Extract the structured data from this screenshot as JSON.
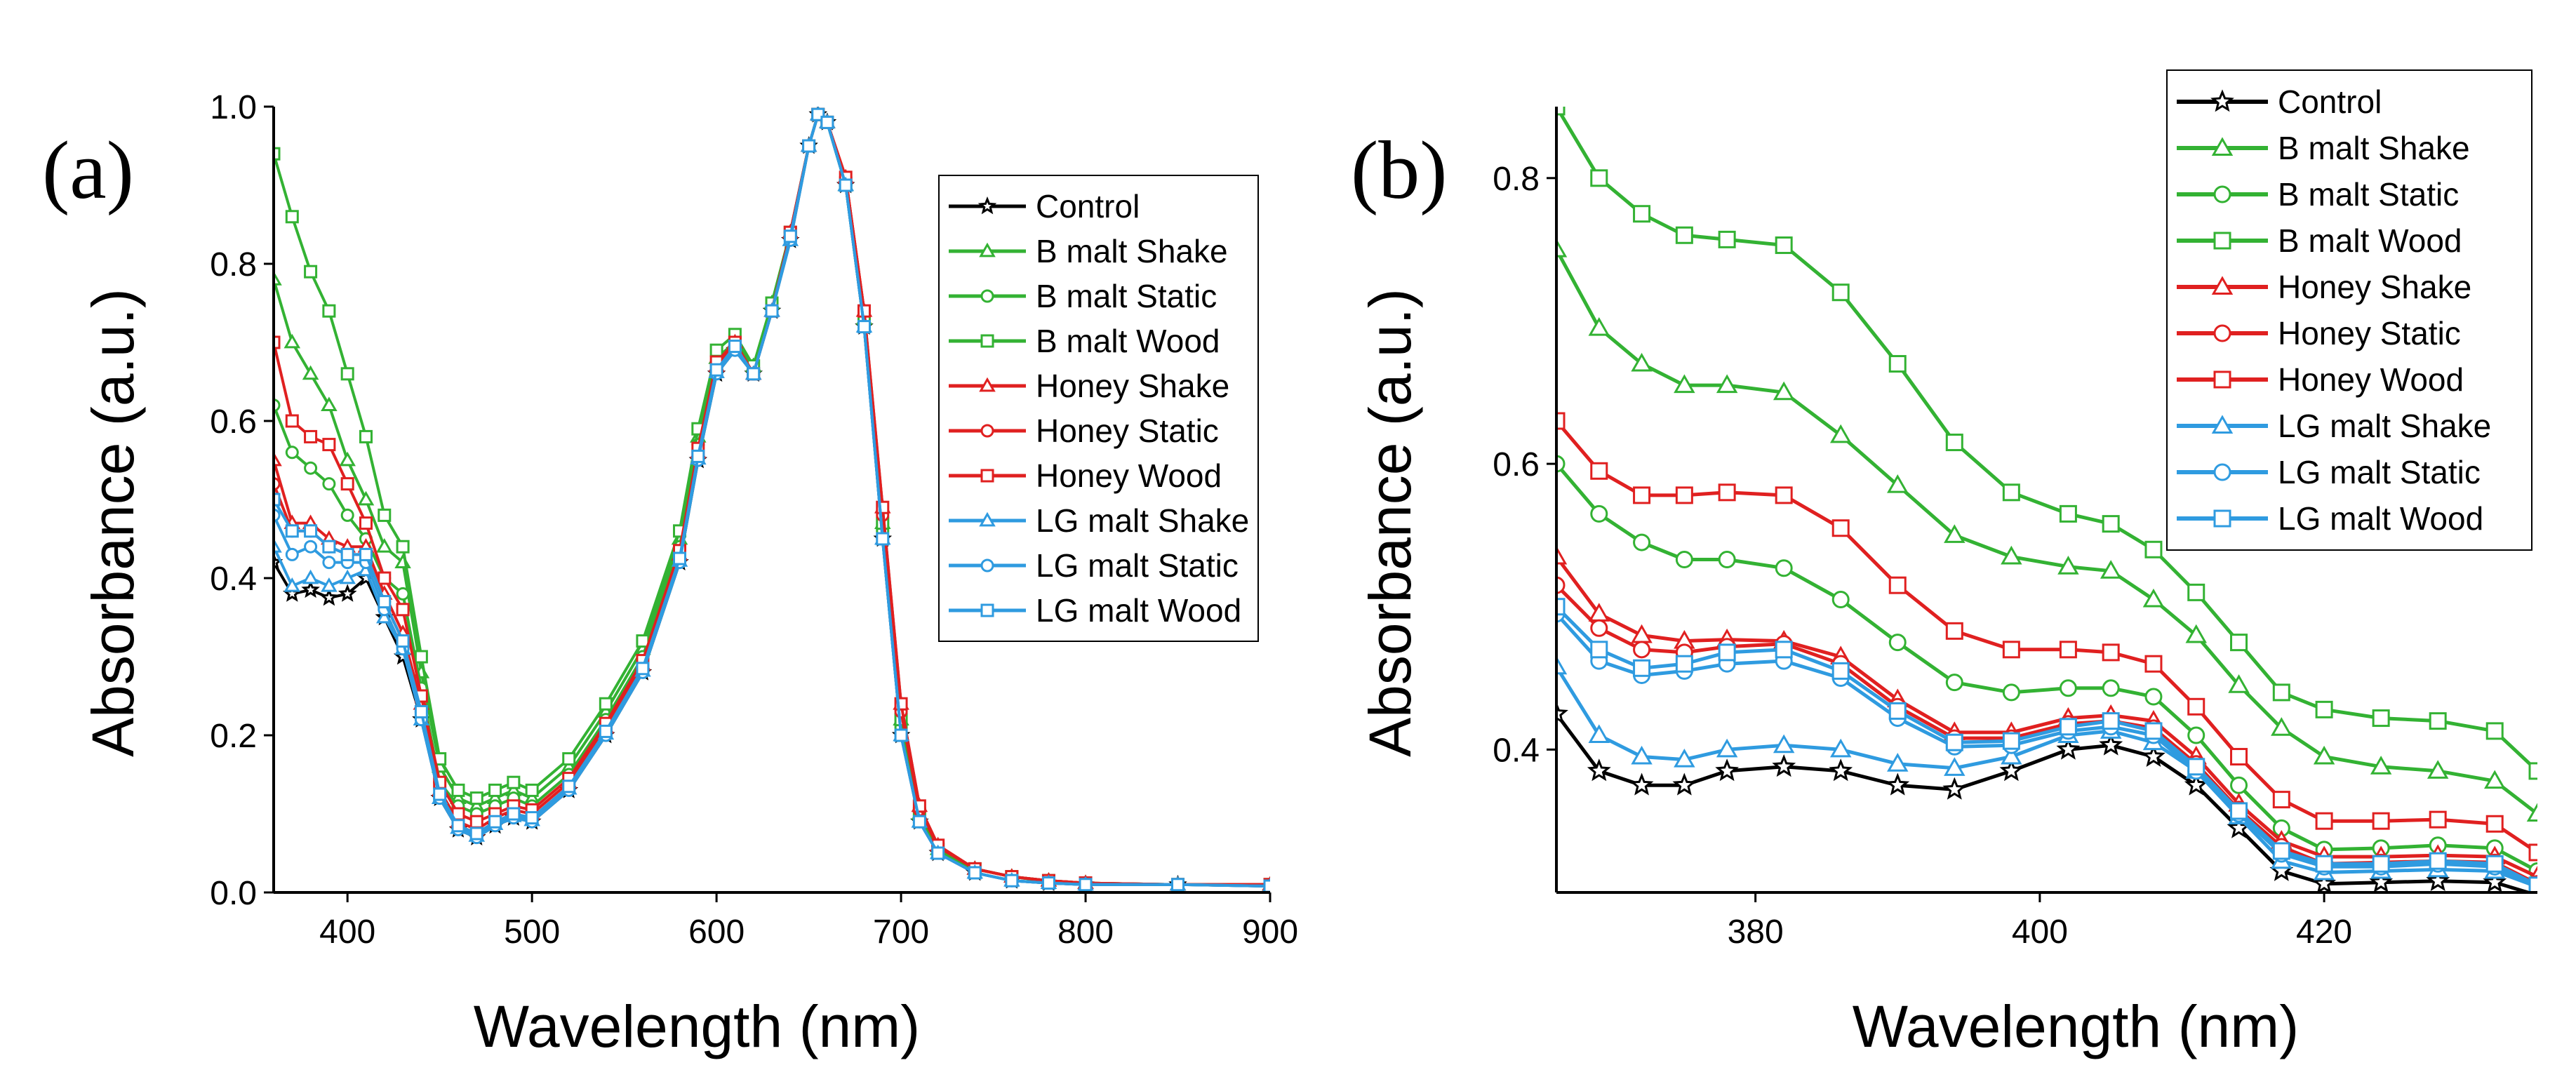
{
  "colors": {
    "control": "#000000",
    "b_malt": "#33b233",
    "honey": "#e02020",
    "lg_malt": "#2f9be0"
  },
  "chart_data": [
    {
      "panel": "(a)",
      "type": "line",
      "xlabel": "Wavelength (nm)",
      "ylabel": "Absorbance (a.u.)",
      "xlim": [
        360,
        900
      ],
      "ylim": [
        0.0,
        1.0
      ],
      "xticks": [
        "400",
        "500",
        "600",
        "700",
        "800",
        "900"
      ],
      "yticks": [
        "0.0",
        "0.2",
        "0.4",
        "0.6",
        "0.8",
        "1.0"
      ],
      "legend_position": "top-right",
      "x": [
        360,
        370,
        380,
        390,
        400,
        410,
        420,
        430,
        440,
        450,
        460,
        470,
        480,
        490,
        500,
        520,
        540,
        560,
        580,
        590,
        600,
        610,
        620,
        630,
        640,
        650,
        655,
        660,
        670,
        680,
        690,
        700,
        710,
        720,
        740,
        760,
        780,
        800,
        850,
        900
      ],
      "series": [
        {
          "name": "Control",
          "color": "control",
          "marker": "star",
          "values": [
            0.42,
            0.38,
            0.385,
            0.375,
            0.38,
            0.4,
            0.35,
            0.3,
            0.22,
            0.12,
            0.08,
            0.07,
            0.085,
            0.095,
            0.09,
            0.13,
            0.2,
            0.28,
            0.42,
            0.55,
            0.66,
            0.69,
            0.66,
            0.74,
            0.83,
            0.95,
            0.99,
            0.98,
            0.9,
            0.72,
            0.45,
            0.2,
            0.09,
            0.05,
            0.025,
            0.015,
            0.012,
            0.01,
            0.01,
            0.008
          ]
        },
        {
          "name": "B malt Shake",
          "color": "b_malt",
          "marker": "triangle",
          "values": [
            0.78,
            0.7,
            0.66,
            0.62,
            0.55,
            0.5,
            0.44,
            0.42,
            0.28,
            0.16,
            0.12,
            0.11,
            0.12,
            0.13,
            0.12,
            0.16,
            0.23,
            0.31,
            0.45,
            0.58,
            0.68,
            0.7,
            0.67,
            0.75,
            0.84,
            0.95,
            0.99,
            0.98,
            0.9,
            0.73,
            0.47,
            0.22,
            0.1,
            0.055,
            0.03,
            0.02,
            0.015,
            0.012,
            0.01,
            0.01
          ]
        },
        {
          "name": "B malt Static",
          "color": "b_malt",
          "marker": "circle",
          "values": [
            0.62,
            0.56,
            0.54,
            0.52,
            0.48,
            0.45,
            0.4,
            0.38,
            0.26,
            0.14,
            0.11,
            0.1,
            0.11,
            0.12,
            0.11,
            0.15,
            0.22,
            0.3,
            0.44,
            0.57,
            0.67,
            0.7,
            0.66,
            0.74,
            0.84,
            0.95,
            0.99,
            0.98,
            0.9,
            0.72,
            0.46,
            0.21,
            0.095,
            0.05,
            0.03,
            0.02,
            0.014,
            0.011,
            0.01,
            0.01
          ]
        },
        {
          "name": "B malt Wood",
          "color": "b_malt",
          "marker": "square",
          "values": [
            0.94,
            0.86,
            0.79,
            0.74,
            0.66,
            0.58,
            0.48,
            0.44,
            0.3,
            0.17,
            0.13,
            0.12,
            0.13,
            0.14,
            0.13,
            0.17,
            0.24,
            0.32,
            0.46,
            0.59,
            0.69,
            0.71,
            0.67,
            0.75,
            0.84,
            0.95,
            0.99,
            0.98,
            0.9,
            0.73,
            0.47,
            0.22,
            0.1,
            0.055,
            0.03,
            0.02,
            0.015,
            0.012,
            0.01,
            0.01
          ]
        },
        {
          "name": "Honey Shake",
          "color": "honey",
          "marker": "triangle",
          "values": [
            0.55,
            0.47,
            0.47,
            0.45,
            0.44,
            0.44,
            0.38,
            0.33,
            0.24,
            0.13,
            0.09,
            0.08,
            0.095,
            0.105,
            0.1,
            0.14,
            0.21,
            0.29,
            0.43,
            0.56,
            0.67,
            0.7,
            0.66,
            0.74,
            0.84,
            0.95,
            0.99,
            0.98,
            0.91,
            0.74,
            0.49,
            0.24,
            0.11,
            0.06,
            0.03,
            0.02,
            0.015,
            0.012,
            0.01,
            0.01
          ]
        },
        {
          "name": "Honey Static",
          "color": "honey",
          "marker": "circle",
          "values": [
            0.52,
            0.46,
            0.46,
            0.44,
            0.43,
            0.43,
            0.37,
            0.32,
            0.23,
            0.125,
            0.085,
            0.075,
            0.09,
            0.1,
            0.095,
            0.135,
            0.205,
            0.285,
            0.425,
            0.555,
            0.665,
            0.7,
            0.66,
            0.74,
            0.84,
            0.95,
            0.99,
            0.98,
            0.91,
            0.74,
            0.48,
            0.23,
            0.105,
            0.058,
            0.03,
            0.02,
            0.015,
            0.012,
            0.01,
            0.01
          ]
        },
        {
          "name": "Honey Wood",
          "color": "honey",
          "marker": "square",
          "values": [
            0.7,
            0.6,
            0.58,
            0.57,
            0.52,
            0.47,
            0.4,
            0.36,
            0.25,
            0.14,
            0.1,
            0.09,
            0.1,
            0.11,
            0.105,
            0.145,
            0.215,
            0.295,
            0.435,
            0.565,
            0.675,
            0.7,
            0.66,
            0.74,
            0.84,
            0.95,
            0.99,
            0.98,
            0.91,
            0.74,
            0.49,
            0.24,
            0.11,
            0.06,
            0.03,
            0.02,
            0.015,
            0.012,
            0.01,
            0.01
          ]
        },
        {
          "name": "LG malt Shake",
          "color": "lg_malt",
          "marker": "triangle",
          "values": [
            0.44,
            0.39,
            0.4,
            0.39,
            0.4,
            0.41,
            0.35,
            0.31,
            0.22,
            0.12,
            0.082,
            0.072,
            0.087,
            0.097,
            0.092,
            0.132,
            0.202,
            0.282,
            0.422,
            0.552,
            0.662,
            0.69,
            0.66,
            0.74,
            0.83,
            0.95,
            0.99,
            0.98,
            0.9,
            0.72,
            0.45,
            0.2,
            0.09,
            0.05,
            0.025,
            0.015,
            0.012,
            0.01,
            0.01,
            0.008
          ]
        },
        {
          "name": "LG malt Static",
          "color": "lg_malt",
          "marker": "circle",
          "values": [
            0.48,
            0.43,
            0.44,
            0.42,
            0.42,
            0.42,
            0.36,
            0.31,
            0.22,
            0.12,
            0.08,
            0.07,
            0.085,
            0.095,
            0.09,
            0.13,
            0.2,
            0.28,
            0.42,
            0.55,
            0.66,
            0.69,
            0.66,
            0.74,
            0.83,
            0.95,
            0.99,
            0.98,
            0.9,
            0.72,
            0.45,
            0.2,
            0.09,
            0.05,
            0.025,
            0.015,
            0.012,
            0.01,
            0.01,
            0.008
          ]
        },
        {
          "name": "LG malt Wood",
          "color": "lg_malt",
          "marker": "square",
          "values": [
            0.5,
            0.46,
            0.46,
            0.44,
            0.43,
            0.43,
            0.37,
            0.32,
            0.23,
            0.125,
            0.085,
            0.075,
            0.09,
            0.1,
            0.095,
            0.135,
            0.205,
            0.285,
            0.425,
            0.555,
            0.665,
            0.695,
            0.66,
            0.74,
            0.835,
            0.95,
            0.99,
            0.98,
            0.9,
            0.72,
            0.45,
            0.2,
            0.09,
            0.05,
            0.025,
            0.015,
            0.012,
            0.01,
            0.01,
            0.008
          ]
        }
      ]
    },
    {
      "panel": "(b)",
      "type": "line",
      "xlabel": "Wavelength (nm)",
      "ylabel": "Absorbance (a.u.)",
      "xlim": [
        366,
        435
      ],
      "ylim": [
        0.3,
        0.85
      ],
      "xticks": [
        "380",
        "400",
        "420"
      ],
      "yticks": [
        "0.4",
        "0.6",
        "0.8"
      ],
      "legend_position": "top-right",
      "x": [
        366,
        369,
        372,
        375,
        378,
        382,
        386,
        390,
        394,
        398,
        402,
        405,
        408,
        411,
        414,
        417,
        420,
        424,
        428,
        432,
        435
      ],
      "series": [
        {
          "name": "Control",
          "color": "control",
          "marker": "star",
          "values": [
            0.425,
            0.385,
            0.375,
            0.375,
            0.385,
            0.388,
            0.385,
            0.375,
            0.372,
            0.385,
            0.4,
            0.403,
            0.395,
            0.375,
            0.345,
            0.315,
            0.306,
            0.307,
            0.308,
            0.307,
            0.298
          ]
        },
        {
          "name": "B malt Shake",
          "color": "b_malt",
          "marker": "triangle",
          "values": [
            0.75,
            0.695,
            0.67,
            0.655,
            0.655,
            0.65,
            0.62,
            0.585,
            0.55,
            0.535,
            0.528,
            0.525,
            0.505,
            0.48,
            0.445,
            0.415,
            0.395,
            0.388,
            0.385,
            0.378,
            0.355
          ]
        },
        {
          "name": "B malt Static",
          "color": "b_malt",
          "marker": "circle",
          "values": [
            0.6,
            0.565,
            0.545,
            0.533,
            0.533,
            0.527,
            0.505,
            0.475,
            0.447,
            0.44,
            0.443,
            0.443,
            0.437,
            0.41,
            0.375,
            0.345,
            0.33,
            0.331,
            0.333,
            0.331,
            0.315
          ]
        },
        {
          "name": "B malt Wood",
          "color": "b_malt",
          "marker": "square",
          "values": [
            0.85,
            0.8,
            0.775,
            0.76,
            0.757,
            0.753,
            0.72,
            0.67,
            0.615,
            0.58,
            0.565,
            0.558,
            0.54,
            0.51,
            0.475,
            0.44,
            0.428,
            0.422,
            0.42,
            0.413,
            0.385
          ]
        },
        {
          "name": "Honey Shake",
          "color": "honey",
          "marker": "triangle",
          "values": [
            0.535,
            0.495,
            0.48,
            0.476,
            0.477,
            0.476,
            0.465,
            0.435,
            0.412,
            0.412,
            0.422,
            0.424,
            0.42,
            0.395,
            0.362,
            0.336,
            0.325,
            0.325,
            0.326,
            0.325,
            0.311
          ]
        },
        {
          "name": "Honey Static",
          "color": "honey",
          "marker": "circle",
          "values": [
            0.515,
            0.485,
            0.47,
            0.468,
            0.472,
            0.474,
            0.46,
            0.43,
            0.408,
            0.408,
            0.418,
            0.42,
            0.415,
            0.39,
            0.358,
            0.332,
            0.32,
            0.321,
            0.322,
            0.321,
            0.306
          ]
        },
        {
          "name": "Honey Wood",
          "color": "honey",
          "marker": "square",
          "values": [
            0.63,
            0.595,
            0.578,
            0.578,
            0.58,
            0.578,
            0.555,
            0.515,
            0.483,
            0.47,
            0.47,
            0.468,
            0.46,
            0.43,
            0.395,
            0.365,
            0.35,
            0.35,
            0.351,
            0.348,
            0.328
          ]
        },
        {
          "name": "LG malt Shake",
          "color": "lg_malt",
          "marker": "triangle",
          "values": [
            0.458,
            0.41,
            0.395,
            0.393,
            0.4,
            0.403,
            0.4,
            0.39,
            0.387,
            0.395,
            0.41,
            0.413,
            0.405,
            0.385,
            0.353,
            0.322,
            0.314,
            0.315,
            0.316,
            0.315,
            0.304
          ]
        },
        {
          "name": "LG malt Static",
          "color": "lg_malt",
          "marker": "circle",
          "values": [
            0.495,
            0.462,
            0.452,
            0.455,
            0.46,
            0.462,
            0.45,
            0.422,
            0.402,
            0.403,
            0.413,
            0.416,
            0.41,
            0.385,
            0.355,
            0.327,
            0.318,
            0.318,
            0.32,
            0.318,
            0.304
          ]
        },
        {
          "name": "LG malt Wood",
          "color": "lg_malt",
          "marker": "square",
          "values": [
            0.5,
            0.47,
            0.457,
            0.46,
            0.468,
            0.47,
            0.455,
            0.427,
            0.405,
            0.406,
            0.416,
            0.42,
            0.413,
            0.388,
            0.357,
            0.329,
            0.32,
            0.32,
            0.322,
            0.32,
            0.305
          ]
        }
      ]
    }
  ]
}
